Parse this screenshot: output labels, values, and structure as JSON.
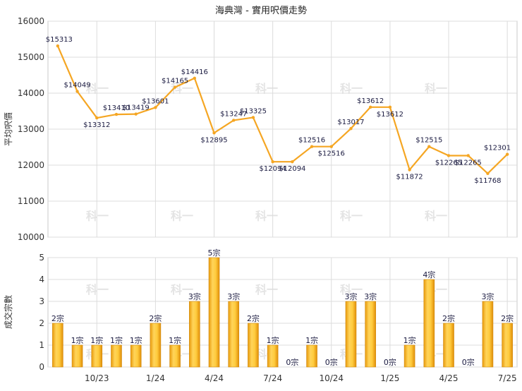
{
  "title": "海典灣 - 實用呎價走勢",
  "chart_data": [
    {
      "type": "line",
      "ylabel": "平均呎價",
      "ylim": [
        10000,
        16000
      ],
      "yticks": [
        10000,
        11000,
        12000,
        13000,
        14000,
        15000,
        16000
      ],
      "grid": true,
      "color": "#f5a623",
      "series": [
        {
          "values": [
            15313,
            14049,
            13312,
            13410,
            13419,
            13601,
            14165,
            14416,
            12895,
            13247,
            13325,
            12094,
            12094,
            12516,
            12516,
            13017,
            13612,
            13612,
            11872,
            12515,
            12265,
            12265,
            11768,
            12301
          ]
        }
      ],
      "labels": [
        "$15313",
        "$14049",
        "$13312",
        "$13410",
        "$13419",
        "$13601",
        "$14165",
        "$14416",
        "$12895",
        "$13247",
        "$13325",
        "$12094",
        "$12094",
        "$12516",
        "$12516",
        "$13017",
        "$13612",
        "$13612",
        "$11872",
        "$12515",
        "$12265",
        "$12265",
        "$11768",
        "$12301"
      ]
    },
    {
      "type": "bar",
      "ylabel": "成交宗數",
      "ylim": [
        0,
        5
      ],
      "yticks": [
        0,
        1,
        2,
        3,
        4,
        5
      ],
      "grid": true,
      "color": "#f5b01a",
      "values": [
        2,
        1,
        1,
        1,
        1,
        2,
        1,
        3,
        5,
        3,
        2,
        1,
        0,
        1,
        0,
        3,
        3,
        0,
        1,
        4,
        2,
        0,
        3,
        2
      ],
      "labels": [
        "2宗",
        "1宗",
        "1宗",
        "1宗",
        "1宗",
        "2宗",
        "1宗",
        "3宗",
        "5宗",
        "3宗",
        "2宗",
        "1宗",
        "0宗",
        "1宗",
        "0宗",
        "3宗",
        "3宗",
        "0宗",
        "1宗",
        "4宗",
        "2宗",
        "0宗",
        "3宗",
        "2宗"
      ],
      "xtick_labels": [
        {
          "index": 2,
          "label": "10/23"
        },
        {
          "index": 5,
          "label": "1/24"
        },
        {
          "index": 8,
          "label": "4/24"
        },
        {
          "index": 11,
          "label": "7/24"
        },
        {
          "index": 14,
          "label": "10/24"
        },
        {
          "index": 17,
          "label": "1/25"
        },
        {
          "index": 20,
          "label": "4/25"
        },
        {
          "index": 23,
          "label": "7/25"
        }
      ]
    }
  ],
  "watermark": "科一"
}
